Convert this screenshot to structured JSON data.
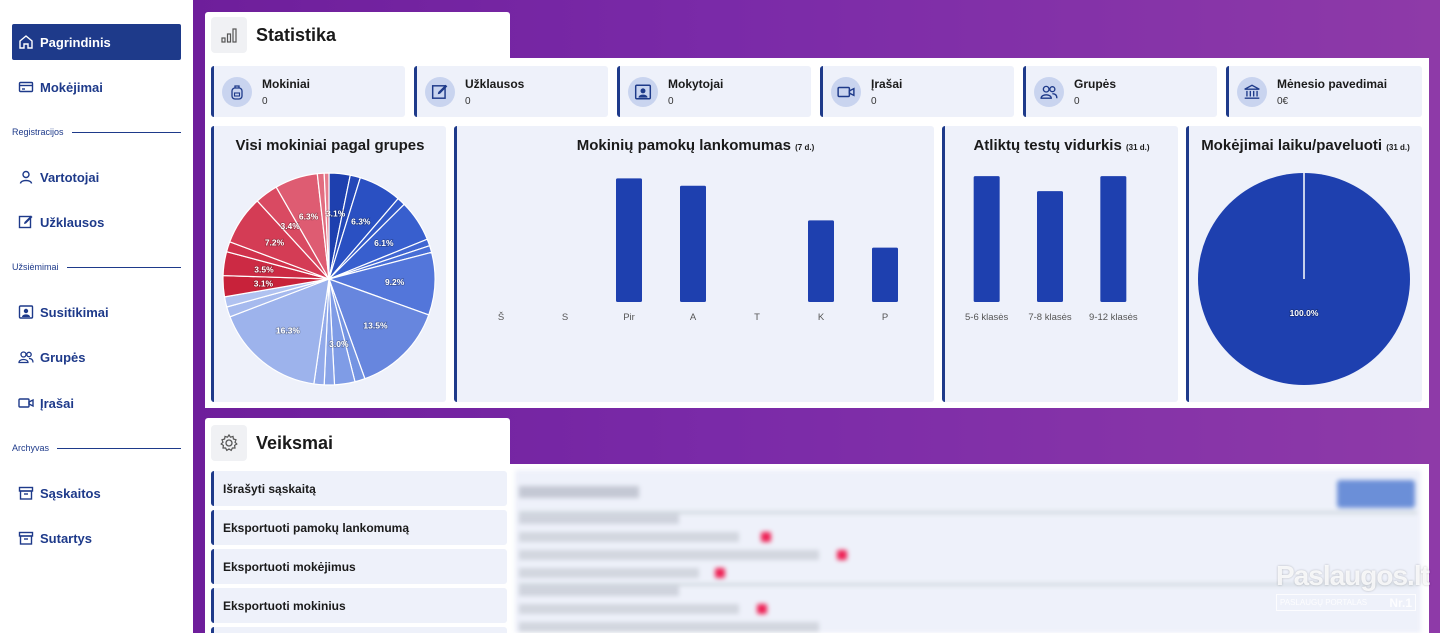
{
  "sidebar": {
    "items": [
      {
        "label": "Pagrindinis",
        "icon": "home-icon"
      },
      {
        "label": "Mokėjimai",
        "icon": "card-icon"
      },
      {
        "label": "Vartotojai",
        "icon": "user-icon"
      },
      {
        "label": "Užklausos",
        "icon": "edit-icon"
      },
      {
        "label": "Susitikimai",
        "icon": "meeting-icon"
      },
      {
        "label": "Grupės",
        "icon": "group-icon"
      },
      {
        "label": "Įrašai",
        "icon": "video-icon"
      },
      {
        "label": "Sąskaitos",
        "icon": "archive-icon"
      },
      {
        "label": "Sutartys",
        "icon": "archive-icon"
      }
    ],
    "sections": [
      "Registracijos",
      "Užsiėmimai",
      "Archyvas"
    ]
  },
  "statistics": {
    "title": "Statistika",
    "cards": [
      {
        "title": "Mokiniai",
        "value": "0",
        "icon": "backpack-icon"
      },
      {
        "title": "Užklausos",
        "value": "0",
        "icon": "edit-icon"
      },
      {
        "title": "Mokytojai",
        "value": "0",
        "icon": "teacher-icon"
      },
      {
        "title": "Įrašai",
        "value": "0",
        "icon": "video-icon"
      },
      {
        "title": "Grupės",
        "value": "0",
        "icon": "group-icon"
      },
      {
        "title": "Mėnesio pavedimai",
        "value": "0€",
        "icon": "bank-icon"
      }
    ]
  },
  "charts": {
    "pie_groups": {
      "title": "Visi mokiniai pagal grupes"
    },
    "attendance": {
      "title": "Mokinių pamokų lankomumas",
      "period": "(7 d.)"
    },
    "tests": {
      "title": "Atliktų testų vidurkis",
      "period": "(31 d.)"
    },
    "payments": {
      "title": "Mokėjimai laiku/paveluoti",
      "period": "(31 d.)"
    }
  },
  "chart_data": [
    {
      "type": "pie",
      "title": "Visi mokiniai pagal grupes",
      "values": [
        3.1,
        1.5,
        6.3,
        1.2,
        6.1,
        1.0,
        1.0,
        9.2,
        13.5,
        1.5,
        3.0,
        1.5,
        1.5,
        16.3,
        1.5,
        1.5,
        3.1,
        3.5,
        1.5,
        7.2,
        3.4,
        6.3,
        1.0,
        0.7
      ],
      "labels": [
        "3.1%",
        "",
        "6.3%",
        "",
        "6.1%",
        "",
        "",
        "9.2%",
        "13.5%",
        "",
        "3.0%",
        "",
        "",
        "16.3%",
        "",
        "",
        "3.1%",
        "3.5%",
        "",
        "7.2%",
        "3.4%",
        "6.3%",
        "",
        ""
      ],
      "colors": [
        "#1e40af",
        "#2448b8",
        "#2a50c2",
        "#3158c8",
        "#385fce",
        "#4066d2",
        "#486ed6",
        "#5376da",
        "#6786de",
        "#7494e2",
        "#7f9ce6",
        "#8aa4e8",
        "#92aaea",
        "#9db3ec",
        "#a6baee",
        "#b0c2f0",
        "#c8223a",
        "#cc2a44",
        "#d0324c",
        "#d43c55",
        "#d94a62",
        "#de5c72",
        "#e26d80",
        "#e67d8e"
      ]
    },
    {
      "type": "bar",
      "title": "Mokinių pamokų lankomumas",
      "categories": [
        "Š",
        "S",
        "Pir",
        "A",
        "T",
        "K",
        "P"
      ],
      "values": [
        0,
        0,
        100,
        94,
        0,
        66,
        44
      ],
      "ylim": [
        0,
        110
      ]
    },
    {
      "type": "bar",
      "title": "Atliktų testų vidurkis",
      "categories": [
        "5-6 klasės",
        "7-8 klasės",
        "9-12 klasės"
      ],
      "values": [
        100,
        88,
        100
      ],
      "ylim": [
        0,
        108
      ]
    },
    {
      "type": "pie",
      "title": "Mokėjimai laiku/paveluoti",
      "values": [
        100
      ],
      "labels": [
        "100.0%"
      ],
      "colors": [
        "#1e40af"
      ]
    }
  ],
  "actions": {
    "title": "Veiksmai",
    "items": [
      "Išrašyti sąskaitą",
      "Eksportuoti pamokų lankomumą",
      "Eksportuoti mokėjimus",
      "Eksportuoti mokinius"
    ]
  },
  "watermark": {
    "brand": "Paslaugos.lt",
    "tagline": "PASLAUGŲ PORTALAS",
    "rank": "Nr.1"
  }
}
